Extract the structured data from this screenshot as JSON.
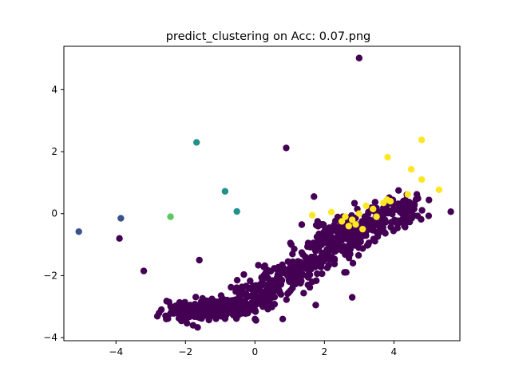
{
  "chart_data": {
    "type": "scatter",
    "title": "predict_clustering on  Acc: 0.07.png",
    "xlabel": "",
    "ylabel": "",
    "xlim": [
      -5.5,
      5.9
    ],
    "ylim": [
      -4.1,
      5.4
    ],
    "xticks": [
      -4,
      -2,
      0,
      2,
      4
    ],
    "yticks": [
      -4,
      -2,
      0,
      2,
      4
    ],
    "xtick_labels": [
      "−4",
      "−2",
      "0",
      "2",
      "4"
    ],
    "ytick_labels": [
      "−4",
      "−2",
      "0",
      "2",
      "4"
    ],
    "grid": false,
    "legend": "none",
    "clusters": [
      {
        "color": "#440154",
        "note": "dominant cluster"
      },
      {
        "color": "#3b528b"
      },
      {
        "color": "#21918c"
      },
      {
        "color": "#5ec962"
      },
      {
        "color": "#fde725"
      }
    ],
    "points": [
      {
        "x": -5.07,
        "y": -0.58,
        "c": 1
      },
      {
        "x": -3.86,
        "y": -0.15,
        "c": 1
      },
      {
        "x": -1.68,
        "y": 2.3,
        "c": 2
      },
      {
        "x": -0.86,
        "y": 0.72,
        "c": 2
      },
      {
        "x": -0.52,
        "y": 0.07,
        "c": 2
      },
      {
        "x": -2.43,
        "y": -0.1,
        "c": 3
      },
      {
        "x": 3.0,
        "y": 5.02,
        "c": 0
      },
      {
        "x": 0.9,
        "y": 2.12,
        "c": 0
      },
      {
        "x": 1.7,
        "y": 0.55,
        "c": 0
      },
      {
        "x": -3.9,
        "y": -0.8,
        "c": 0
      },
      {
        "x": -3.2,
        "y": -1.85,
        "c": 0
      },
      {
        "x": -1.6,
        "y": -1.5,
        "c": 0
      },
      {
        "x": 2.8,
        "y": -2.7,
        "c": 0
      },
      {
        "x": 1.1,
        "y": -2.3,
        "c": 0
      },
      {
        "x": 1.75,
        "y": -2.95,
        "c": 0
      },
      {
        "x": 0.8,
        "y": -3.4,
        "c": 0
      },
      {
        "x": 4.8,
        "y": 2.38,
        "c": 4
      },
      {
        "x": 3.82,
        "y": 1.82,
        "c": 4
      },
      {
        "x": 4.5,
        "y": 1.43,
        "c": 4
      },
      {
        "x": 4.8,
        "y": 1.1,
        "c": 4
      },
      {
        "x": 5.3,
        "y": 0.77,
        "c": 4
      },
      {
        "x": 4.4,
        "y": 0.62,
        "c": 4
      },
      {
        "x": 3.9,
        "y": 0.4,
        "c": 4
      },
      {
        "x": 3.8,
        "y": 0.45,
        "c": 4
      },
      {
        "x": 3.7,
        "y": 0.35,
        "c": 4
      },
      {
        "x": 1.65,
        "y": -0.05,
        "c": 4
      },
      {
        "x": 2.6,
        "y": -0.1,
        "c": 4
      },
      {
        "x": 2.8,
        "y": -0.2,
        "c": 4
      },
      {
        "x": 2.9,
        "y": -0.35,
        "c": 4
      },
      {
        "x": 2.7,
        "y": -0.4,
        "c": 4
      },
      {
        "x": 3.0,
        "y": 0.0,
        "c": 4
      },
      {
        "x": 3.2,
        "y": 0.25,
        "c": 4
      },
      {
        "x": 3.4,
        "y": 0.15,
        "c": 4
      },
      {
        "x": 2.2,
        "y": 0.05,
        "c": 4
      },
      {
        "x": 2.5,
        "y": -0.25,
        "c": 4
      },
      {
        "x": 3.1,
        "y": -0.5,
        "c": 4
      },
      {
        "x": 3.5,
        "y": -0.1,
        "c": 4
      }
    ],
    "dense_cluster_note": "Approximately 700 additional points of the dominant dark-purple cluster lie along a band from about (-2.3, -3.2) through (0, -2.6) and (1.2, -1.8) to (4.5, 0.2); they are reproduced by the script as an approximate cloud."
  }
}
